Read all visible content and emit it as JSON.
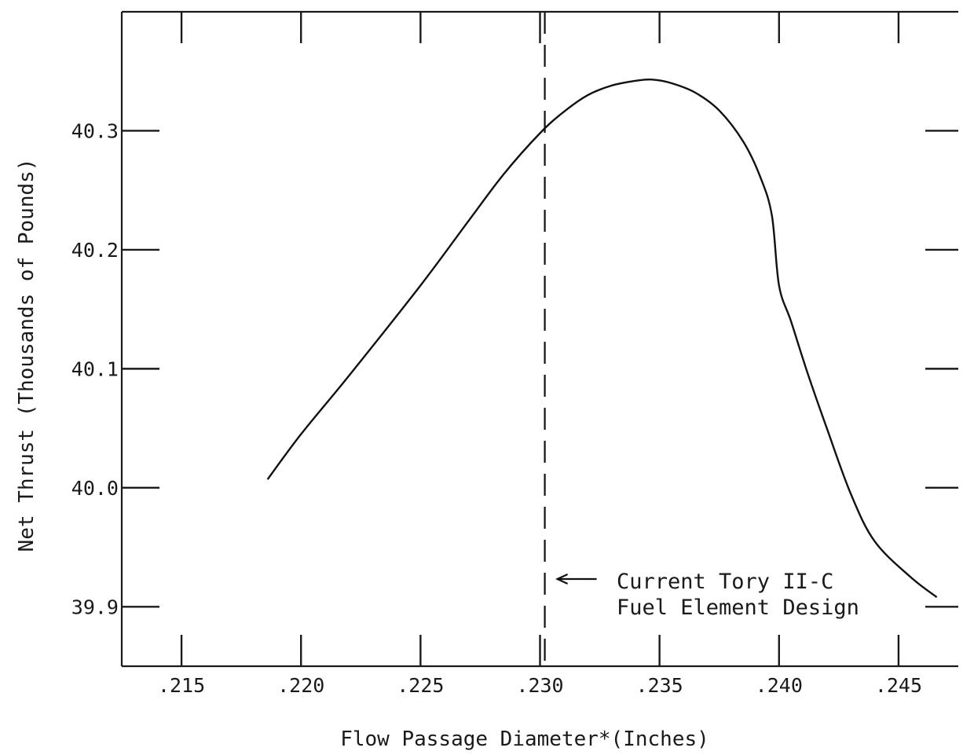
{
  "chart_data": {
    "type": "line",
    "xlabel": "Flow Passage Diameter*(Inches)",
    "ylabel": "Net Thrust (Thousands of Pounds)",
    "xlim": [
      0.2125,
      0.2475
    ],
    "ylim": [
      39.85,
      40.4
    ],
    "x_ticks": [
      {
        "value": 0.215,
        "label": ".215"
      },
      {
        "value": 0.22,
        "label": ".220"
      },
      {
        "value": 0.225,
        "label": ".225"
      },
      {
        "value": 0.23,
        "label": ".230"
      },
      {
        "value": 0.235,
        "label": ".235"
      },
      {
        "value": 0.24,
        "label": ".240"
      },
      {
        "value": 0.245,
        "label": ".245"
      }
    ],
    "y_ticks": [
      {
        "value": 39.9,
        "label": "39.9"
      },
      {
        "value": 40.0,
        "label": "40.0"
      },
      {
        "value": 40.1,
        "label": "40.1"
      },
      {
        "value": 40.2,
        "label": "40.2"
      },
      {
        "value": 40.3,
        "label": "40.3"
      }
    ],
    "grid": false,
    "series": [
      {
        "x": [
          0.2186,
          0.22,
          0.222,
          0.225,
          0.227,
          0.2285,
          0.23,
          0.231,
          0.232,
          0.233,
          0.234,
          0.2347,
          0.2355,
          0.2365,
          0.2375,
          0.2385,
          0.2392,
          0.2397,
          0.24,
          0.2405,
          0.2412,
          0.242,
          0.243,
          0.244,
          0.2455,
          0.2466
        ],
        "y": [
          40.007,
          40.045,
          40.094,
          40.17,
          40.224,
          40.264,
          40.298,
          40.316,
          40.33,
          40.338,
          40.342,
          40.343,
          40.34,
          40.332,
          40.317,
          40.291,
          40.262,
          40.229,
          40.17,
          40.14,
          40.096,
          40.05,
          39.995,
          39.955,
          39.925,
          39.908
        ]
      }
    ],
    "reference_line": {
      "x": 0.2302
    },
    "annotation": {
      "lines": [
        "Current Tory II-C",
        "Fuel Element Design"
      ],
      "points_to_x": 0.2302
    }
  }
}
